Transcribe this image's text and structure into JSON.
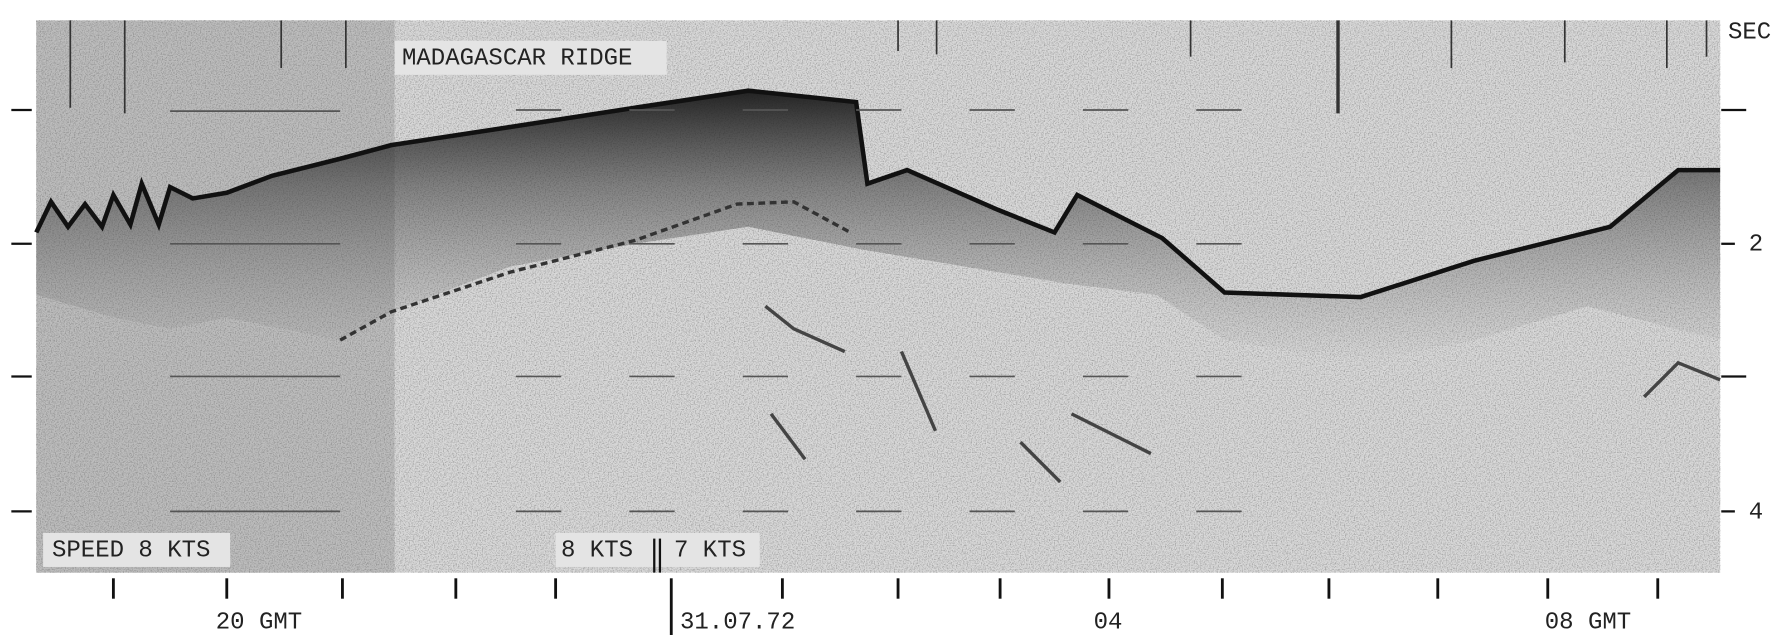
{
  "header": {
    "unit": "SEC",
    "annotation": "MADAGASCAR RIDGE"
  },
  "depth_labels": [
    "2",
    "4"
  ],
  "speed_labels": [
    "SPEED 8 KTS",
    "8 KTS",
    "7 KTS"
  ],
  "time_labels": [
    "20 GMT",
    "31.07.72",
    "04",
    "08 GMT"
  ]
}
